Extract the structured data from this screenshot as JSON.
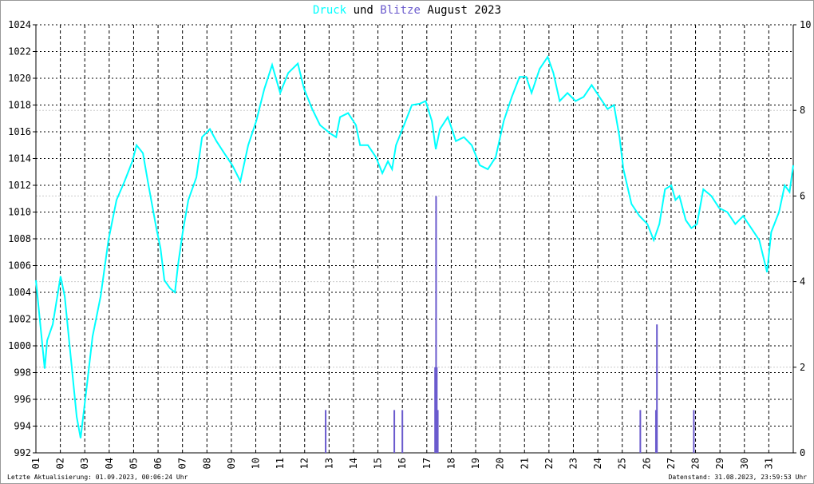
{
  "title": {
    "part1": "Druck",
    "part2": "und",
    "part3": "Blitze",
    "part4": "August 2023"
  },
  "colors": {
    "pressure": "#00ffff",
    "lightning": "#6a5acd",
    "grid": "#000000",
    "title_text": "#000000"
  },
  "footer": {
    "left": "Letzte Aktualisierung: 01.09.2023, 00:06:24 Uhr",
    "right": "Datenstand: 31.08.2023, 23:59:53 Uhr"
  },
  "chart_data": {
    "type": "line",
    "title": "Druck und Blitze August 2023",
    "grid": true,
    "xlim": [
      1,
      32
    ],
    "x_tick_labels": [
      "01",
      "02",
      "03",
      "04",
      "05",
      "06",
      "07",
      "08",
      "09",
      "10",
      "11",
      "12",
      "13",
      "14",
      "15",
      "16",
      "17",
      "18",
      "19",
      "20",
      "21",
      "22",
      "23",
      "24",
      "25",
      "26",
      "27",
      "28",
      "29",
      "30",
      "31"
    ],
    "y_left": {
      "lim": [
        992,
        1024
      ],
      "ticks": [
        992,
        994,
        996,
        998,
        1000,
        1002,
        1004,
        1006,
        1008,
        1010,
        1012,
        1014,
        1016,
        1018,
        1020,
        1022,
        1024
      ]
    },
    "y_right": {
      "lim": [
        0,
        10
      ],
      "ticks": [
        0,
        2,
        4,
        6,
        8,
        10
      ]
    },
    "series": [
      {
        "name": "Druck",
        "axis": "left",
        "kind": "line",
        "points": [
          [
            1.0,
            1004.9
          ],
          [
            1.26,
            1000.1
          ],
          [
            1.36,
            998.3
          ],
          [
            1.46,
            1000.4
          ],
          [
            1.69,
            1001.6
          ],
          [
            2.01,
            1005.2
          ],
          [
            2.18,
            1003.7
          ],
          [
            2.44,
            998.9
          ],
          [
            2.67,
            994.7
          ],
          [
            2.83,
            993.1
          ],
          [
            3.09,
            997.1
          ],
          [
            3.32,
            1000.7
          ],
          [
            3.65,
            1003.7
          ],
          [
            3.97,
            1007.9
          ],
          [
            4.3,
            1010.9
          ],
          [
            4.63,
            1012.3
          ],
          [
            4.95,
            1013.8
          ],
          [
            5.12,
            1015.0
          ],
          [
            5.38,
            1014.4
          ],
          [
            5.61,
            1012.0
          ],
          [
            5.93,
            1008.8
          ],
          [
            6.1,
            1007.3
          ],
          [
            6.26,
            1004.9
          ],
          [
            6.49,
            1004.3
          ],
          [
            6.69,
            1004.0
          ],
          [
            6.82,
            1006.1
          ],
          [
            7.01,
            1008.5
          ],
          [
            7.24,
            1010.9
          ],
          [
            7.57,
            1012.6
          ],
          [
            7.8,
            1015.6
          ],
          [
            8.12,
            1016.2
          ],
          [
            8.39,
            1015.3
          ],
          [
            8.71,
            1014.4
          ],
          [
            9.04,
            1013.5
          ],
          [
            9.37,
            1012.3
          ],
          [
            9.69,
            1015.0
          ],
          [
            10.02,
            1016.8
          ],
          [
            10.35,
            1019.2
          ],
          [
            10.67,
            1021.0
          ],
          [
            11.0,
            1018.9
          ],
          [
            11.33,
            1020.4
          ],
          [
            11.72,
            1021.1
          ],
          [
            11.98,
            1019.2
          ],
          [
            12.31,
            1017.7
          ],
          [
            12.63,
            1016.5
          ],
          [
            13.03,
            1015.9
          ],
          [
            13.29,
            1015.6
          ],
          [
            13.45,
            1017.1
          ],
          [
            13.78,
            1017.4
          ],
          [
            14.1,
            1016.5
          ],
          [
            14.27,
            1015.0
          ],
          [
            14.59,
            1015.0
          ],
          [
            14.92,
            1014.1
          ],
          [
            15.18,
            1012.9
          ],
          [
            15.41,
            1013.8
          ],
          [
            15.58,
            1013.2
          ],
          [
            15.74,
            1015.0
          ],
          [
            16.07,
            1016.5
          ],
          [
            16.39,
            1018.0
          ],
          [
            16.72,
            1018.1
          ],
          [
            16.95,
            1018.3
          ],
          [
            17.21,
            1016.8
          ],
          [
            17.37,
            1014.7
          ],
          [
            17.54,
            1016.2
          ],
          [
            17.86,
            1017.1
          ],
          [
            18.03,
            1016.2
          ],
          [
            18.19,
            1015.3
          ],
          [
            18.52,
            1015.6
          ],
          [
            18.84,
            1015.0
          ],
          [
            19.17,
            1013.5
          ],
          [
            19.5,
            1013.2
          ],
          [
            19.82,
            1014.1
          ],
          [
            20.15,
            1016.8
          ],
          [
            20.48,
            1018.6
          ],
          [
            20.8,
            1020.1
          ],
          [
            21.07,
            1020.1
          ],
          [
            21.29,
            1018.9
          ],
          [
            21.62,
            1020.7
          ],
          [
            21.95,
            1021.6
          ],
          [
            22.18,
            1020.4
          ],
          [
            22.44,
            1018.3
          ],
          [
            22.76,
            1018.9
          ],
          [
            23.09,
            1018.3
          ],
          [
            23.42,
            1018.6
          ],
          [
            23.75,
            1019.5
          ],
          [
            24.07,
            1018.6
          ],
          [
            24.4,
            1017.7
          ],
          [
            24.66,
            1018.0
          ],
          [
            24.89,
            1015.6
          ],
          [
            25.05,
            1013.2
          ],
          [
            25.38,
            1010.6
          ],
          [
            25.71,
            1009.7
          ],
          [
            26.03,
            1009.1
          ],
          [
            26.29,
            1007.9
          ],
          [
            26.52,
            1009.1
          ],
          [
            26.75,
            1011.7
          ],
          [
            27.01,
            1012.0
          ],
          [
            27.18,
            1010.9
          ],
          [
            27.34,
            1011.2
          ],
          [
            27.6,
            1009.4
          ],
          [
            27.83,
            1008.8
          ],
          [
            28.06,
            1009.1
          ],
          [
            28.32,
            1011.7
          ],
          [
            28.65,
            1011.2
          ],
          [
            28.97,
            1010.3
          ],
          [
            29.3,
            1010.0
          ],
          [
            29.63,
            1009.1
          ],
          [
            29.95,
            1009.7
          ],
          [
            30.28,
            1008.8
          ],
          [
            30.61,
            1007.9
          ],
          [
            30.93,
            1005.5
          ],
          [
            31.1,
            1008.5
          ],
          [
            31.42,
            1010.0
          ],
          [
            31.65,
            1012.0
          ],
          [
            31.85,
            1011.5
          ],
          [
            32.0,
            1013.5
          ]
        ]
      },
      {
        "name": "Blitze",
        "axis": "right",
        "kind": "bar",
        "points": [
          [
            12.86,
            1
          ],
          [
            15.67,
            1
          ],
          [
            16.0,
            1
          ],
          [
            17.34,
            2
          ],
          [
            17.38,
            6
          ],
          [
            17.41,
            2
          ],
          [
            17.45,
            1
          ],
          [
            25.74,
            1
          ],
          [
            26.38,
            1
          ],
          [
            26.42,
            3
          ],
          [
            27.93,
            1
          ]
        ]
      }
    ]
  }
}
